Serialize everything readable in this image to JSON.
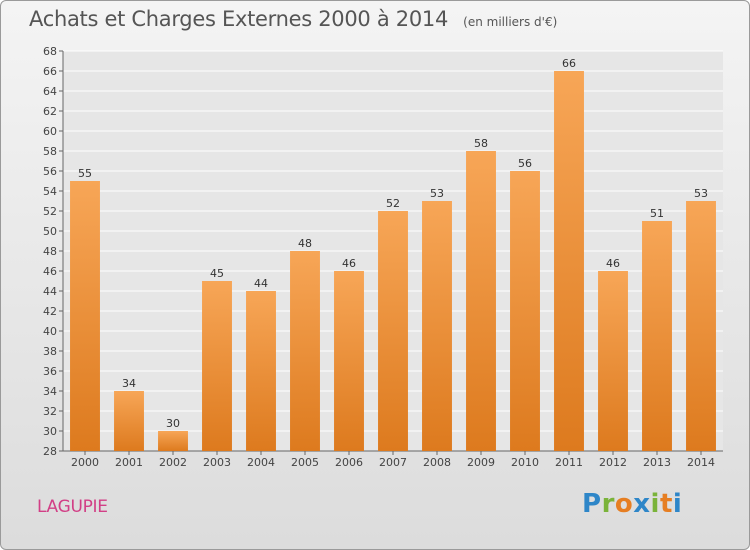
{
  "title": "Achats et Charges Externes 2000 à 2014",
  "unit_note": "(en milliers d'€)",
  "commune": "LAGUPIE",
  "logo": {
    "letters": [
      "P",
      "r",
      "o",
      "x",
      "i",
      "t",
      "i"
    ],
    "colors": [
      "#2e86c8",
      "#7ab33a",
      "#e67e22",
      "#2e86c8",
      "#7ab33a",
      "#e67e22",
      "#2e86c8"
    ]
  },
  "colors": {
    "bar_top": "#f7a657",
    "bar_bottom": "#dd7a1e",
    "grid": "#ffffff",
    "title": "#555555",
    "commune": "#d23f86"
  },
  "chart_data": {
    "type": "bar",
    "categories": [
      "2000",
      "2001",
      "2002",
      "2003",
      "2004",
      "2005",
      "2006",
      "2007",
      "2008",
      "2009",
      "2010",
      "2011",
      "2012",
      "2013",
      "2014"
    ],
    "values": [
      55,
      34,
      30,
      45,
      44,
      48,
      46,
      52,
      53,
      58,
      56,
      66,
      46,
      51,
      53
    ],
    "ylim": [
      28,
      68
    ],
    "yticks": [
      28,
      30,
      32,
      34,
      36,
      38,
      40,
      42,
      44,
      46,
      48,
      50,
      52,
      54,
      56,
      58,
      60,
      62,
      64,
      66,
      68
    ],
    "grid": "horizontal",
    "title": "Achats et Charges Externes 2000 à 2014",
    "xlabel": "",
    "ylabel": ""
  }
}
